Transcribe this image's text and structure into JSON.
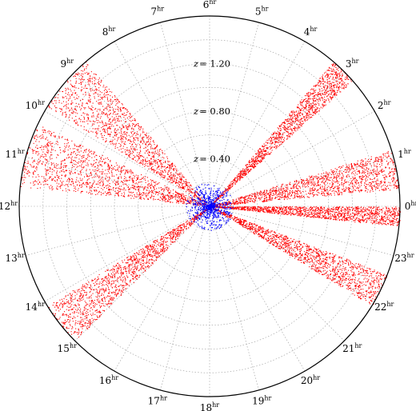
{
  "chart_data": {
    "type": "scatter",
    "projection": "polar",
    "title": "",
    "angular_axis": {
      "unit": "hr",
      "ticks": [
        {
          "value": 0,
          "label": "0"
        },
        {
          "value": 1,
          "label": "1"
        },
        {
          "value": 2,
          "label": "2"
        },
        {
          "value": 3,
          "label": "3"
        },
        {
          "value": 4,
          "label": "4"
        },
        {
          "value": 5,
          "label": "5"
        },
        {
          "value": 6,
          "label": "6"
        },
        {
          "value": 7,
          "label": "7"
        },
        {
          "value": 8,
          "label": "8"
        },
        {
          "value": 9,
          "label": "9"
        },
        {
          "value": 10,
          "label": "10"
        },
        {
          "value": 11,
          "label": "11"
        },
        {
          "value": 12,
          "label": "12"
        },
        {
          "value": 13,
          "label": "13"
        },
        {
          "value": 14,
          "label": "14"
        },
        {
          "value": 15,
          "label": "15"
        },
        {
          "value": 16,
          "label": "16"
        },
        {
          "value": 17,
          "label": "17"
        },
        {
          "value": 18,
          "label": "18"
        },
        {
          "value": 19,
          "label": "19"
        },
        {
          "value": 20,
          "label": "20"
        },
        {
          "value": 21,
          "label": "21"
        },
        {
          "value": 22,
          "label": "22"
        },
        {
          "value": 23,
          "label": "23"
        }
      ]
    },
    "radial_axis": {
      "variable": "z",
      "range": [
        0,
        1.6
      ],
      "gridlines": [
        0.2,
        0.4,
        0.6,
        0.8,
        1.0,
        1.2,
        1.4
      ],
      "tick_labels": [
        {
          "value": 0.4,
          "label": "= 0.40"
        },
        {
          "value": 0.8,
          "label": "= 0.80"
        },
        {
          "value": 1.2,
          "label": "= 1.20"
        }
      ]
    },
    "grid": true,
    "legend": "none",
    "series": [
      {
        "color": "#ff0000",
        "marker": "dot",
        "wedges": [
          {
            "ra_hr": [
              8.7,
              9.9
            ],
            "z": [
              0.02,
              1.6
            ]
          },
          {
            "ra_hr": [
              10.3,
              11.6
            ],
            "z": [
              0.02,
              1.6
            ]
          },
          {
            "ra_hr": [
              2.75,
              3.3
            ],
            "z": [
              0.02,
              1.6
            ]
          },
          {
            "ra_hr": [
              0.35,
              1.15
            ],
            "z": [
              0.02,
              1.6
            ]
          },
          {
            "ra_hr": [
              23.6,
              24.0
            ],
            "z": [
              0.02,
              1.6
            ]
          },
          {
            "ra_hr": [
              21.9,
              22.6
            ],
            "z": [
              0.02,
              1.6
            ]
          },
          {
            "ra_hr": [
              14.1,
              15.0
            ],
            "z": [
              0.02,
              1.6
            ]
          }
        ]
      },
      {
        "color": "#0000ff",
        "marker": "dot",
        "region": {
          "ra_hr": [
            0,
            24
          ],
          "z": [
            0.0,
            0.2
          ]
        }
      }
    ]
  }
}
